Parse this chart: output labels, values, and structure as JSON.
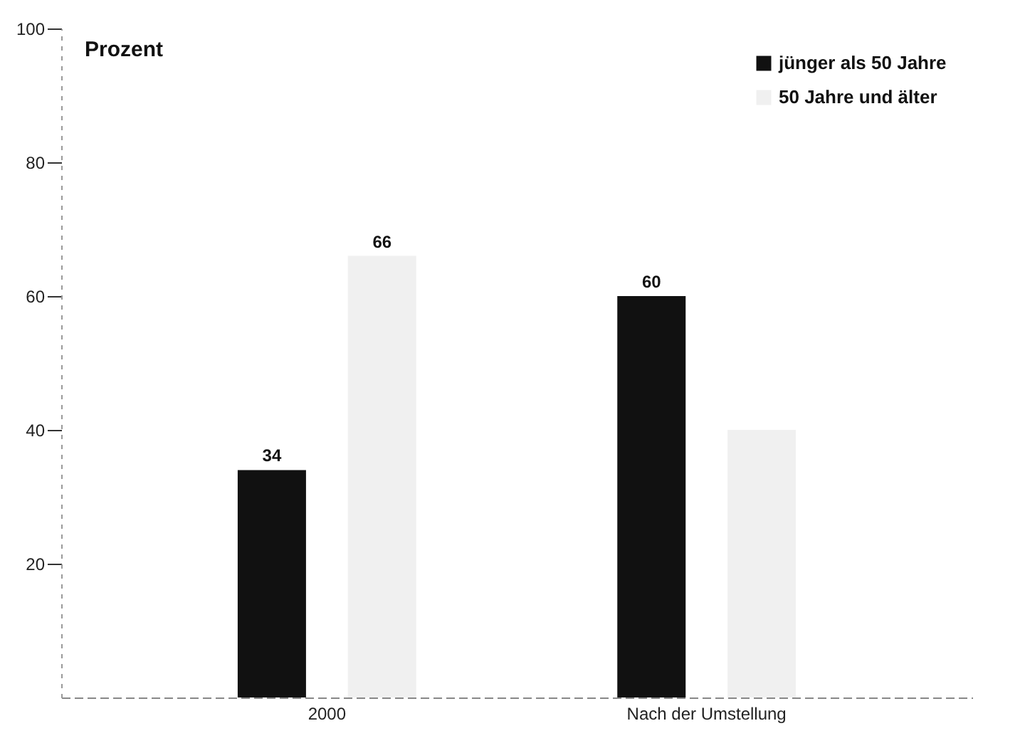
{
  "chart_data": {
    "type": "bar",
    "ylabel": "Prozent",
    "categories": [
      "2000",
      "Nach der Umstellung"
    ],
    "series": [
      {
        "name": "jünger als 50 Jahre",
        "color": "#111111",
        "values": [
          34,
          60
        ],
        "value_labels": [
          "34",
          "60"
        ]
      },
      {
        "name": "50 Jahre und älter",
        "color": "#f0f0f0",
        "values": [
          66,
          40
        ],
        "value_labels": [
          "66",
          null
        ]
      }
    ],
    "ylim": [
      0,
      100
    ],
    "yticks": [
      20,
      40,
      60,
      80,
      100
    ],
    "grid": false,
    "legend": "top right"
  }
}
